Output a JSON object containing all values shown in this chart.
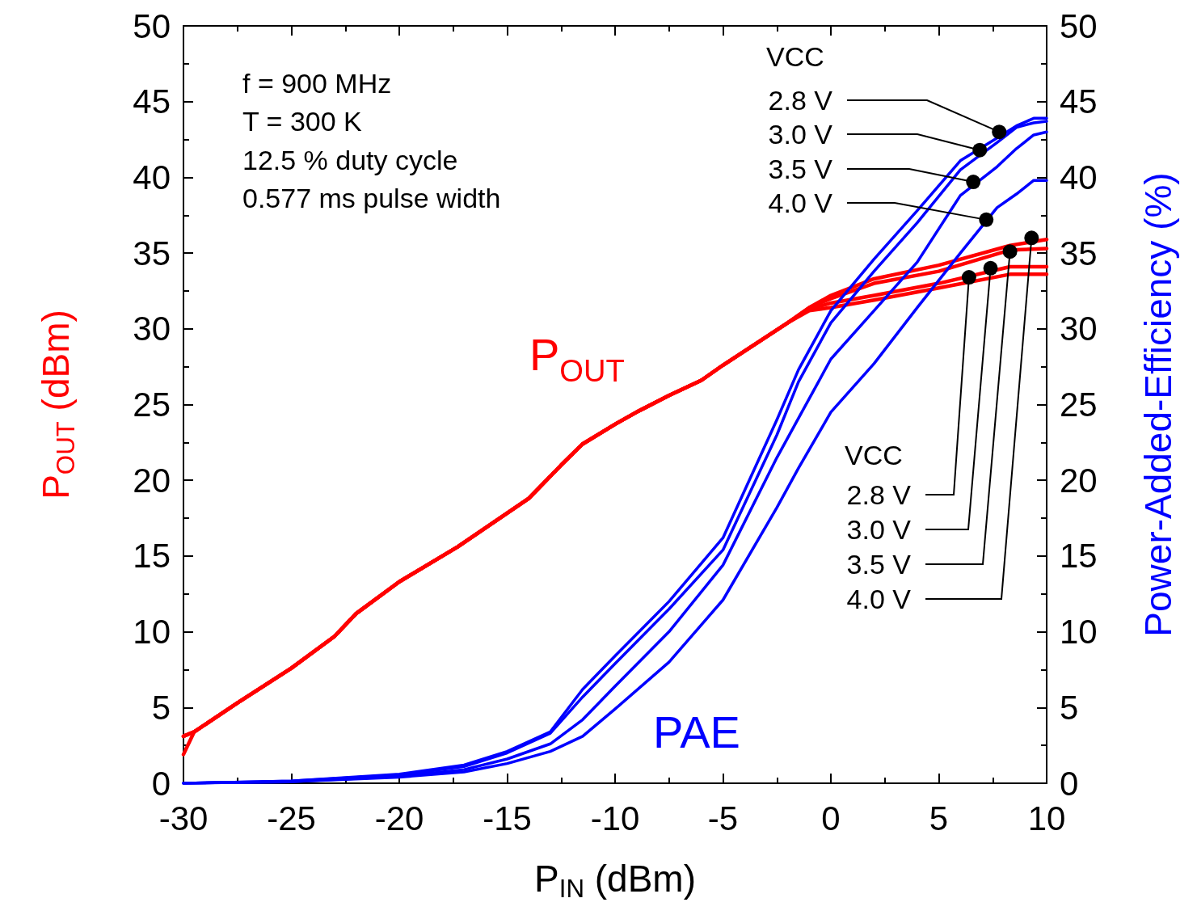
{
  "chart_data": {
    "type": "line",
    "xlabel": "P$_{IN}$ (dBm)",
    "ylabel": "P$_{OUT}$ (dBm)",
    "y2label": "Power-Added-Efficiency (%)",
    "xlim": [
      -30,
      10
    ],
    "xticks": [
      -30,
      -25,
      -20,
      -15,
      -10,
      -5,
      0,
      5,
      10
    ],
    "ylim": [
      0,
      50
    ],
    "yticks": [
      0,
      5,
      10,
      15,
      20,
      25,
      30,
      35,
      40,
      45,
      50
    ],
    "y2lim": [
      0,
      50
    ],
    "y2ticks": [
      0,
      5,
      10,
      15,
      20,
      25,
      30,
      35,
      40,
      45,
      50
    ],
    "grid": false,
    "marker": "none",
    "series": [
      {
        "color": "#ff0000",
        "x": [
          -30,
          -29.5,
          -27.5,
          -25,
          -23,
          -22,
          -20,
          -17.3,
          -14,
          -12.5,
          -11.5,
          -10,
          -9,
          -7.5,
          -6,
          -5,
          -3.5,
          -2,
          -1,
          0,
          2,
          5,
          8.3,
          10
        ],
        "values": [
          3.1,
          3.4,
          5.3,
          7.6,
          9.7,
          11.2,
          13.3,
          15.6,
          18.8,
          21.0,
          22.4,
          23.7,
          24.5,
          25.6,
          26.6,
          27.6,
          29.0,
          30.4,
          31.2,
          31.4,
          31.9,
          32.7,
          33.6,
          33.6
        ]
      },
      {
        "color": "#ff0000",
        "x": [
          -30,
          -29.5,
          -27.5,
          -25,
          -23,
          -22,
          -20,
          -17.3,
          -14,
          -12.5,
          -11.5,
          -10,
          -9,
          -7.5,
          -6,
          -5,
          -3.5,
          -2,
          -1,
          0,
          2,
          5,
          8.3,
          10
        ],
        "values": [
          3.1,
          3.4,
          5.3,
          7.6,
          9.7,
          11.2,
          13.3,
          15.6,
          18.8,
          21.0,
          22.4,
          23.7,
          24.5,
          25.6,
          26.6,
          27.6,
          29.0,
          30.4,
          31.3,
          31.7,
          32.2,
          33.0,
          34.1,
          34.1
        ]
      },
      {
        "color": "#ff0000",
        "x": [
          -30,
          -29.5,
          -27.5,
          -25,
          -23,
          -22,
          -20,
          -17.3,
          -14,
          -12.5,
          -11.5,
          -10,
          -9,
          -7.5,
          -6,
          -5,
          -3.5,
          -2,
          -1,
          0,
          2,
          5,
          8.3,
          10
        ],
        "values": [
          3.1,
          3.4,
          5.3,
          7.6,
          9.7,
          11.2,
          13.3,
          15.6,
          18.8,
          21.0,
          22.4,
          23.7,
          24.5,
          25.6,
          26.6,
          27.6,
          29.0,
          30.4,
          31.4,
          32.0,
          33.0,
          33.8,
          35.2,
          35.3
        ]
      },
      {
        "color": "#ff0000",
        "x": [
          -30,
          -29.5,
          -27.5,
          -25,
          -23,
          -22,
          -20,
          -17.3,
          -14,
          -12.5,
          -11.5,
          -10,
          -9,
          -7.5,
          -6,
          -5,
          -3.5,
          -2,
          -1,
          0,
          2,
          5,
          8.3,
          10
        ],
        "values": [
          1.9,
          3.4,
          5.3,
          7.6,
          9.7,
          11.2,
          13.3,
          15.6,
          18.8,
          21.0,
          22.4,
          23.7,
          24.5,
          25.6,
          26.6,
          27.6,
          29.0,
          30.4,
          31.4,
          32.2,
          33.3,
          34.2,
          35.5,
          35.9
        ]
      },
      {
        "color": "#0000ff",
        "axis": "y2",
        "x": [
          -30,
          -25,
          -20,
          -17,
          -15,
          -13,
          -11.5,
          -10,
          -7.5,
          -5,
          -2.5,
          -1.5,
          0,
          2,
          4,
          6,
          7.7,
          8.6,
          9.4,
          10
        ],
        "values": [
          0,
          0.15,
          0.6,
          1.2,
          2.1,
          3.4,
          6.2,
          8.4,
          12.0,
          16.2,
          24.0,
          27.3,
          31.2,
          34.6,
          37.8,
          41.1,
          42.6,
          43.4,
          43.9,
          43.9
        ]
      },
      {
        "color": "#0000ff",
        "axis": "y2",
        "x": [
          -30,
          -25,
          -20,
          -17,
          -15,
          -13,
          -11.5,
          -10,
          -7.5,
          -5,
          -2.5,
          -1.5,
          0,
          2,
          4,
          6,
          7.7,
          8.6,
          9.4,
          10
        ],
        "values": [
          0,
          0.15,
          0.55,
          1.1,
          2.0,
          3.3,
          5.7,
          7.9,
          11.5,
          15.4,
          23.0,
          26.5,
          30.4,
          33.8,
          37.0,
          40.5,
          42.3,
          43.3,
          43.6,
          43.7
        ]
      },
      {
        "color": "#0000ff",
        "axis": "y2",
        "x": [
          -30,
          -25,
          -20,
          -17,
          -15,
          -13,
          -11.5,
          -10,
          -7.5,
          -5,
          -2.5,
          -1.5,
          0,
          2,
          4,
          6,
          7.7,
          8.6,
          9.4,
          10
        ],
        "values": [
          0,
          0.1,
          0.45,
          0.9,
          1.6,
          2.6,
          4.2,
          6.4,
          10.0,
          14.4,
          21.5,
          24.1,
          28.0,
          31.2,
          34.4,
          38.8,
          40.7,
          41.9,
          42.8,
          43.0
        ]
      },
      {
        "color": "#0000ff",
        "axis": "y2",
        "x": [
          -30,
          -25,
          -20,
          -17,
          -15,
          -13,
          -11.5,
          -10,
          -7.5,
          -5,
          -2.5,
          -1.5,
          0,
          2,
          4,
          6,
          7.7,
          8.6,
          9.4,
          10
        ],
        "values": [
          0,
          0.1,
          0.4,
          0.75,
          1.3,
          2.1,
          3.1,
          4.9,
          8.0,
          12.1,
          18.2,
          20.8,
          24.5,
          27.7,
          31.4,
          35.0,
          38.0,
          38.9,
          39.8,
          39.8
        ]
      }
    ],
    "annotations": [
      "f = 900 MHz",
      "T = 300 K",
      "12.5 % duty cycle",
      "0.577 ms pulse width",
      "P$_{OUT}$",
      "PAE",
      "VCC",
      {
        "text": "2.8 V",
        "x": 7.8,
        "y": 43.0
      },
      {
        "text": "3.0 V",
        "x": 6.9,
        "y": 41.8
      },
      {
        "text": "3.5 V",
        "x": 6.6,
        "y": 39.7
      },
      {
        "text": "4.0 V",
        "x": 7.2,
        "y": 37.2
      },
      "VCC",
      {
        "text": "2.8 V",
        "x": 6.4,
        "y": 33.4
      },
      {
        "text": "3.0 V",
        "x": 7.4,
        "y": 34.0
      },
      {
        "text": "3.5 V",
        "x": 8.3,
        "y": 35.1
      },
      {
        "text": "4.0 V",
        "x": 9.3,
        "y": 36.0
      }
    ]
  }
}
